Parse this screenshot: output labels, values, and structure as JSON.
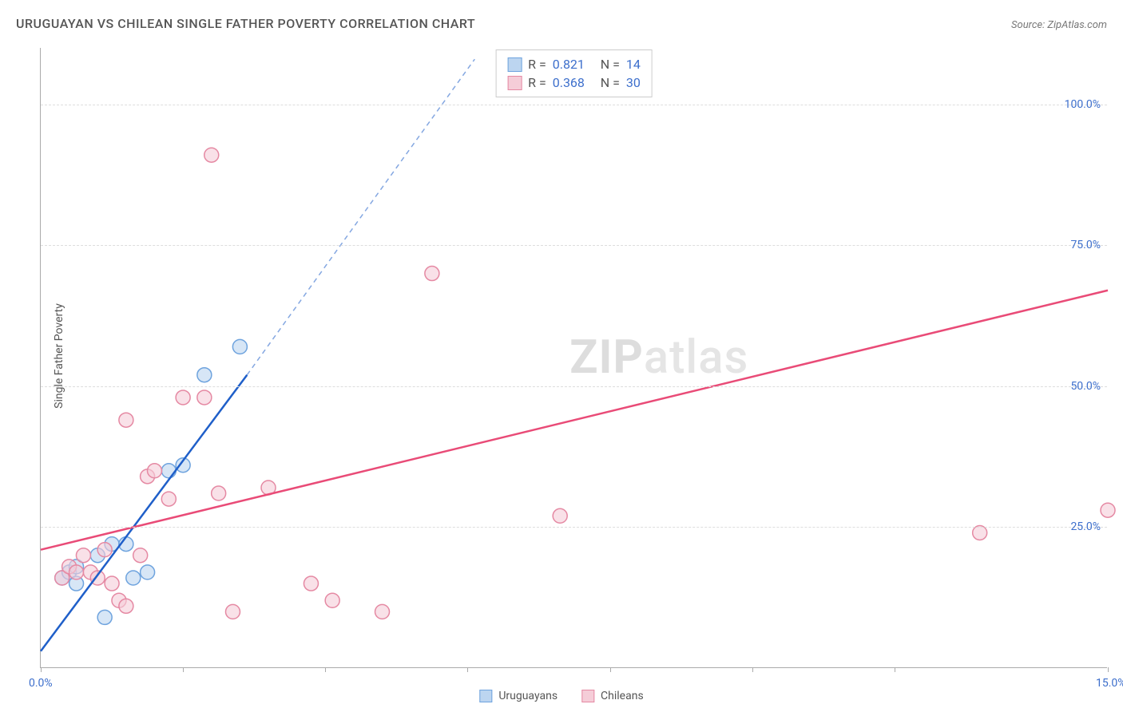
{
  "chart": {
    "type": "scatter",
    "title": "URUGUAYAN VS CHILEAN SINGLE FATHER POVERTY CORRELATION CHART",
    "source_label": "Source: ZipAtlas.com",
    "y_axis_label": "Single Father Poverty",
    "watermark": "ZIPatlas",
    "background_color": "#ffffff",
    "grid_color": "#dddddd",
    "axis_color": "#aaaaaa",
    "label_color": "#555555",
    "value_color": "#3d6fcc",
    "title_fontsize": 16,
    "label_fontsize": 14,
    "xlim": [
      0,
      15
    ],
    "ylim": [
      0,
      110
    ],
    "x_ticks": [
      0,
      2,
      4,
      6,
      8,
      10,
      12,
      15
    ],
    "x_tick_labels": {
      "0": "0.0%",
      "15": "15.0%"
    },
    "y_ticks": [
      25,
      50,
      75,
      100
    ],
    "y_tick_labels": {
      "25": "25.0%",
      "50": "50.0%",
      "75": "75.0%",
      "100": "100.0%"
    },
    "series": [
      {
        "name": "Uruguayans",
        "fill_color": "#bcd5f0",
        "stroke_color": "#6ea3de",
        "fill_opacity": 0.6,
        "line_color": "#1f5fc9",
        "line_width": 2.5,
        "marker_radius": 9,
        "R": "0.821",
        "N": "14",
        "points": [
          {
            "x": 0.3,
            "y": 16
          },
          {
            "x": 0.4,
            "y": 17
          },
          {
            "x": 0.5,
            "y": 18
          },
          {
            "x": 0.5,
            "y": 15
          },
          {
            "x": 0.8,
            "y": 20
          },
          {
            "x": 1.0,
            "y": 22
          },
          {
            "x": 0.9,
            "y": 9
          },
          {
            "x": 1.3,
            "y": 16
          },
          {
            "x": 1.5,
            "y": 17
          },
          {
            "x": 1.2,
            "y": 22
          },
          {
            "x": 1.8,
            "y": 35
          },
          {
            "x": 2.0,
            "y": 36
          },
          {
            "x": 2.3,
            "y": 52
          },
          {
            "x": 2.8,
            "y": 57
          }
        ],
        "trend": {
          "x1": 0,
          "y1": 3,
          "x2": 2.9,
          "y2": 52,
          "dash_x2": 6.1,
          "dash_y2": 108
        }
      },
      {
        "name": "Chileans",
        "fill_color": "#f5cdd8",
        "stroke_color": "#e589a3",
        "fill_opacity": 0.6,
        "line_color": "#e94b77",
        "line_width": 2.5,
        "marker_radius": 9,
        "R": "0.368",
        "N": "30",
        "points": [
          {
            "x": 0.3,
            "y": 16
          },
          {
            "x": 0.4,
            "y": 18
          },
          {
            "x": 0.5,
            "y": 17
          },
          {
            "x": 0.6,
            "y": 20
          },
          {
            "x": 0.7,
            "y": 17
          },
          {
            "x": 0.8,
            "y": 16
          },
          {
            "x": 0.9,
            "y": 21
          },
          {
            "x": 1.0,
            "y": 15
          },
          {
            "x": 1.1,
            "y": 12
          },
          {
            "x": 1.2,
            "y": 11
          },
          {
            "x": 1.4,
            "y": 20
          },
          {
            "x": 1.5,
            "y": 34
          },
          {
            "x": 1.6,
            "y": 35
          },
          {
            "x": 1.2,
            "y": 44
          },
          {
            "x": 2.0,
            "y": 48
          },
          {
            "x": 1.8,
            "y": 30
          },
          {
            "x": 2.3,
            "y": 48
          },
          {
            "x": 2.5,
            "y": 31
          },
          {
            "x": 2.7,
            "y": 10
          },
          {
            "x": 3.2,
            "y": 32
          },
          {
            "x": 3.8,
            "y": 15
          },
          {
            "x": 4.1,
            "y": 12
          },
          {
            "x": 4.8,
            "y": 10
          },
          {
            "x": 2.4,
            "y": 91
          },
          {
            "x": 5.5,
            "y": 70
          },
          {
            "x": 6.6,
            "y": 105
          },
          {
            "x": 8.4,
            "y": 105
          },
          {
            "x": 7.3,
            "y": 27
          },
          {
            "x": 13.2,
            "y": 24
          },
          {
            "x": 15.0,
            "y": 28
          }
        ],
        "trend": {
          "x1": 0,
          "y1": 21,
          "x2": 15,
          "y2": 67
        }
      }
    ],
    "legend_labels": {
      "r_prefix": "R =",
      "n_prefix": "N ="
    }
  }
}
